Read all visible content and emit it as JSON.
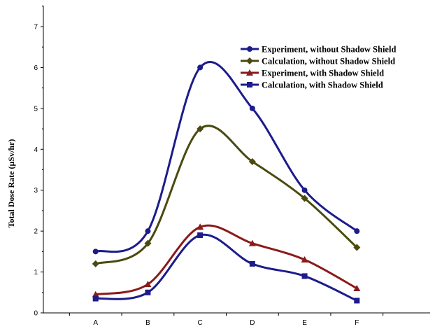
{
  "chart_data": {
    "type": "line",
    "title": "",
    "xlabel": "",
    "ylabel": "Total Dose Rate (µSv/hr)",
    "categories": [
      "A",
      "B",
      "C",
      "D",
      "E",
      "F"
    ],
    "ylim": [
      0,
      7
    ],
    "yticks": [
      0,
      1,
      2,
      3,
      4,
      5,
      6,
      7
    ],
    "grid": false,
    "legend_position": "top-right",
    "smooth": true,
    "series": [
      {
        "name": "Experiment, without Shadow Shield",
        "values": [
          1.5,
          2.0,
          6.0,
          5.0,
          3.0,
          2.0
        ],
        "color": "#1c1c8c",
        "marker": "circle"
      },
      {
        "name": "Calculation, without Shadow Shield",
        "values": [
          1.2,
          1.7,
          4.5,
          3.7,
          2.8,
          1.6
        ],
        "color": "#4a4a10",
        "marker": "diamond"
      },
      {
        "name": "Experiment, with Shadow Shield",
        "values": [
          0.45,
          0.7,
          2.1,
          1.7,
          1.3,
          0.6
        ],
        "color": "#8c1a1a",
        "marker": "triangle"
      },
      {
        "name": "Calculation, with Shadow Shield",
        "values": [
          0.35,
          0.5,
          1.9,
          1.2,
          0.9,
          0.3
        ],
        "color": "#1c1c8c",
        "marker": "square"
      }
    ]
  }
}
